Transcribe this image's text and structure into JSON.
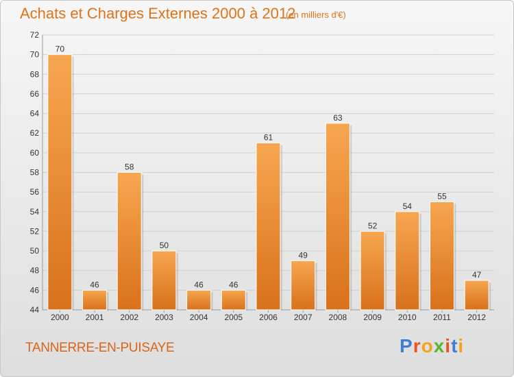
{
  "header": {
    "title": "Achats et Charges Externes 2000 à 2012",
    "subtitle": "(en milliers d'€)"
  },
  "footer": {
    "commune": "TANNERRE-EN-PUISAYE",
    "logo_letters": [
      "P",
      "r",
      "o",
      "x",
      "i",
      "t",
      "i"
    ],
    "logo_colors": [
      "#3f7fd0",
      "#e8541a",
      "#f2a21b",
      "#5bb531",
      "#e8541a",
      "#3f7fd0",
      "#f2a21b"
    ]
  },
  "colors": {
    "bar_top": "#f7a650",
    "bar_bottom": "#d9711b",
    "title": "#e0731a"
  },
  "chart_data": {
    "type": "bar",
    "title": "Achats et Charges Externes 2000 à 2012",
    "subtitle": "(en milliers d'€)",
    "categories": [
      "2000",
      "2001",
      "2002",
      "2003",
      "2004",
      "2005",
      "2006",
      "2007",
      "2008",
      "2009",
      "2010",
      "2011",
      "2012"
    ],
    "values": [
      70,
      46,
      58,
      50,
      46,
      46,
      61,
      49,
      63,
      52,
      54,
      55,
      47
    ],
    "ylim": [
      44,
      72
    ],
    "yticks": [
      44,
      46,
      48,
      50,
      52,
      54,
      56,
      58,
      60,
      62,
      64,
      66,
      68,
      70,
      72
    ],
    "grid": true,
    "data_labels": true
  }
}
